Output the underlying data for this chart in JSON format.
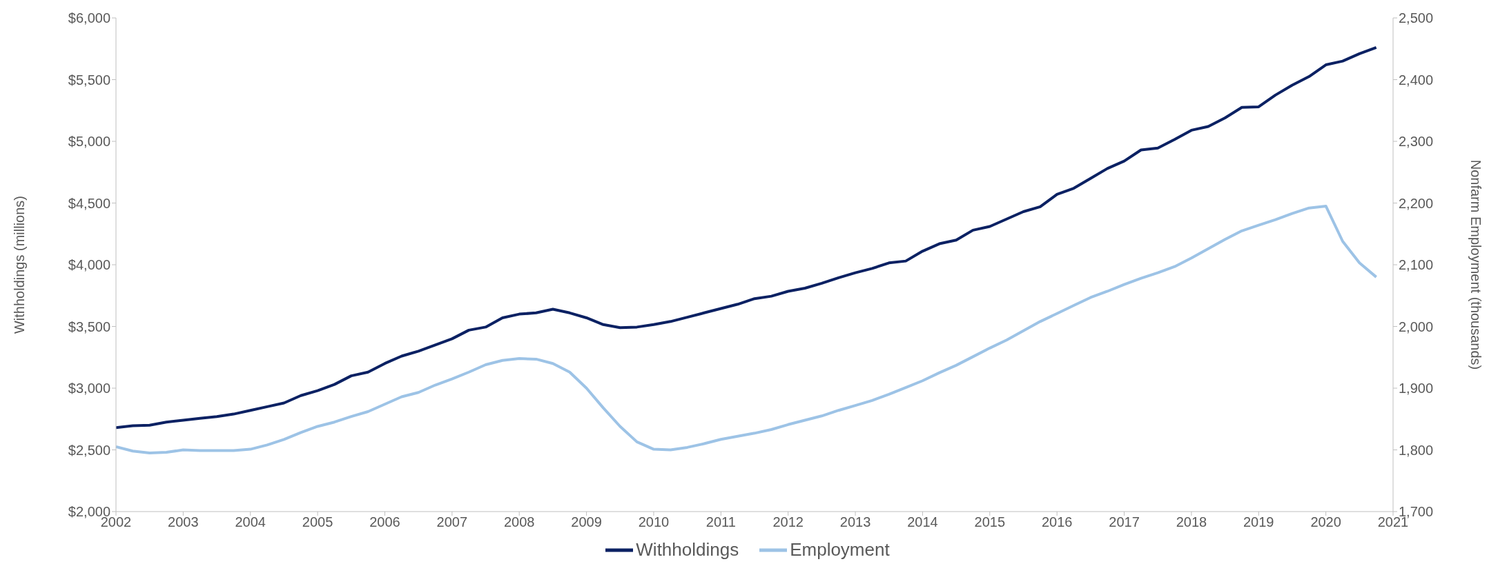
{
  "chart_data": {
    "type": "line",
    "ylabel": "Withholdings (millions)",
    "y2label": "Nonfarm Employment (thousands)",
    "x": [
      2002,
      2002.25,
      2002.5,
      2002.75,
      2003,
      2003.25,
      2003.5,
      2003.75,
      2004,
      2004.25,
      2004.5,
      2004.75,
      2005,
      2005.25,
      2005.5,
      2005.75,
      2006,
      2006.25,
      2006.5,
      2006.75,
      2007,
      2007.25,
      2007.5,
      2007.75,
      2008,
      2008.25,
      2008.5,
      2008.75,
      2009,
      2009.25,
      2009.5,
      2009.75,
      2010,
      2010.25,
      2010.5,
      2010.75,
      2011,
      2011.25,
      2011.5,
      2011.75,
      2012,
      2012.25,
      2012.5,
      2012.75,
      2013,
      2013.25,
      2013.5,
      2013.75,
      2014,
      2014.25,
      2014.5,
      2014.75,
      2015,
      2015.25,
      2015.5,
      2015.75,
      2016,
      2016.25,
      2016.5,
      2016.75,
      2017,
      2017.25,
      2017.5,
      2017.75,
      2018,
      2018.25,
      2018.5,
      2018.75,
      2019,
      2019.25,
      2019.5,
      2019.75,
      2020,
      2020.25,
      2020.5,
      2020.75
    ],
    "series": [
      {
        "name": "Withholdings",
        "color": "#0b2163",
        "values": [
          2680,
          2695,
          2700,
          2725,
          2740,
          2755,
          2770,
          2790,
          2820,
          2850,
          2880,
          2940,
          2980,
          3030,
          3100,
          3130,
          3200,
          3260,
          3300,
          3350,
          3400,
          3470,
          3495,
          3570,
          3600,
          3610,
          3640,
          3610,
          3570,
          3515,
          3490,
          3495,
          3515,
          3540,
          3575,
          3610,
          3645,
          3680,
          3725,
          3745,
          3785,
          3810,
          3850,
          3895,
          3935,
          3970,
          4015,
          4030,
          4110,
          4170,
          4200,
          4280,
          4310,
          4370,
          4430,
          4470,
          4570,
          4620,
          4700,
          4780,
          4840,
          4930,
          4945,
          5015,
          5090,
          5120,
          5190,
          5275,
          5280,
          5375,
          5455,
          5525,
          5620,
          5650,
          5710,
          5760
        ]
      },
      {
        "name": "Employment",
        "color": "#9dc3e6",
        "axis": "y2",
        "values": [
          1805,
          1798,
          1795,
          1796,
          1800,
          1799,
          1799,
          1799,
          1801,
          1808,
          1817,
          1828,
          1838,
          1845,
          1854,
          1862,
          1874,
          1886,
          1893,
          1905,
          1915,
          1926,
          1938,
          1945,
          1948,
          1947,
          1940,
          1926,
          1900,
          1868,
          1838,
          1813,
          1801,
          1800,
          1804,
          1810,
          1817,
          1822,
          1827,
          1833,
          1841,
          1848,
          1855,
          1864,
          1872,
          1880,
          1890,
          1901,
          1912,
          1925,
          1937,
          1951,
          1965,
          1978,
          1993,
          2008,
          2021,
          2034,
          2047,
          2057,
          2068,
          2078,
          2087,
          2097,
          2111,
          2126,
          2141,
          2155,
          2164,
          2173,
          2183,
          2192,
          2195,
          2138,
          2103,
          2080
        ]
      }
    ],
    "xlim": [
      2002,
      2021
    ],
    "xticks": [
      2002,
      2003,
      2004,
      2005,
      2006,
      2007,
      2008,
      2009,
      2010,
      2011,
      2012,
      2013,
      2014,
      2015,
      2016,
      2017,
      2018,
      2019,
      2020,
      2021
    ],
    "ylim": [
      2000,
      6000
    ],
    "yticks": [
      {
        "value": 2000,
        "label": "$2,000"
      },
      {
        "value": 2500,
        "label": "$2,500"
      },
      {
        "value": 3000,
        "label": "$3,000"
      },
      {
        "value": 3500,
        "label": "$3,500"
      },
      {
        "value": 4000,
        "label": "$4,000"
      },
      {
        "value": 4500,
        "label": "$4,500"
      },
      {
        "value": 5000,
        "label": "$5,000"
      },
      {
        "value": 5500,
        "label": "$5,500"
      },
      {
        "value": 6000,
        "label": "$6,000"
      }
    ],
    "y2lim": [
      1700,
      2500
    ],
    "y2ticks": [
      {
        "value": 1700,
        "label": "1,700"
      },
      {
        "value": 1800,
        "label": "1,800"
      },
      {
        "value": 1900,
        "label": "1,900"
      },
      {
        "value": 2000,
        "label": "2,000"
      },
      {
        "value": 2100,
        "label": "2,100"
      },
      {
        "value": 2200,
        "label": "2,200"
      },
      {
        "value": 2300,
        "label": "2,300"
      },
      {
        "value": 2400,
        "label": "2,400"
      },
      {
        "value": 2500,
        "label": "2,500"
      }
    ],
    "legend": "bottom",
    "grid": false,
    "marker": "none",
    "line_style": "solid"
  }
}
